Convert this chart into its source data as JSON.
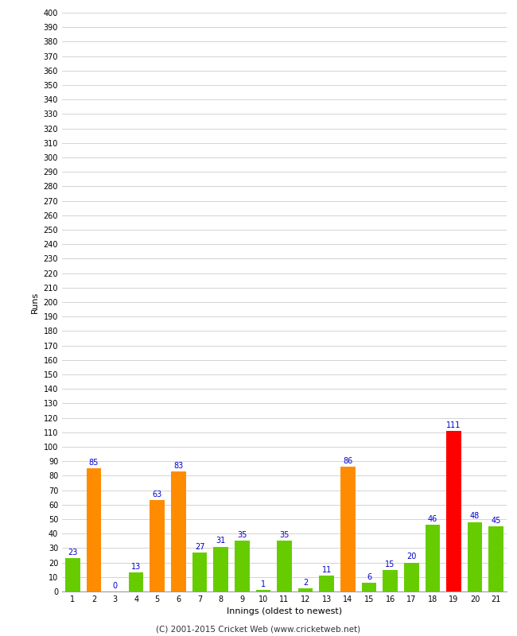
{
  "innings": [
    1,
    2,
    3,
    4,
    5,
    6,
    7,
    8,
    9,
    10,
    11,
    12,
    13,
    14,
    15,
    16,
    17,
    18,
    19,
    20,
    21
  ],
  "values": [
    23,
    85,
    0,
    13,
    63,
    83,
    27,
    31,
    35,
    1,
    35,
    2,
    11,
    86,
    6,
    15,
    20,
    46,
    111,
    48,
    45
  ],
  "colors": [
    "#66cc00",
    "#ff8c00",
    "#66cc00",
    "#66cc00",
    "#ff8c00",
    "#ff8c00",
    "#66cc00",
    "#66cc00",
    "#66cc00",
    "#66cc00",
    "#66cc00",
    "#66cc00",
    "#66cc00",
    "#ff8c00",
    "#66cc00",
    "#66cc00",
    "#66cc00",
    "#66cc00",
    "#ff0000",
    "#66cc00",
    "#66cc00"
  ],
  "xlabel": "Innings (oldest to newest)",
  "ylabel": "Runs",
  "ylim": [
    0,
    400
  ],
  "yticks": [
    0,
    10,
    20,
    30,
    40,
    50,
    60,
    70,
    80,
    90,
    100,
    110,
    120,
    130,
    140,
    150,
    160,
    170,
    180,
    190,
    200,
    210,
    220,
    230,
    240,
    250,
    260,
    270,
    280,
    290,
    300,
    310,
    320,
    330,
    340,
    350,
    360,
    370,
    380,
    390,
    400
  ],
  "background_color": "#ffffff",
  "grid_color": "#cccccc",
  "label_color": "#0000cc",
  "footer": "(C) 2001-2015 Cricket Web (www.cricketweb.net)",
  "bar_width": 0.7,
  "ytick_fontsize": 7,
  "xtick_fontsize": 7,
  "xlabel_fontsize": 8,
  "ylabel_fontsize": 8,
  "bar_label_fontsize": 7,
  "footer_fontsize": 7.5
}
